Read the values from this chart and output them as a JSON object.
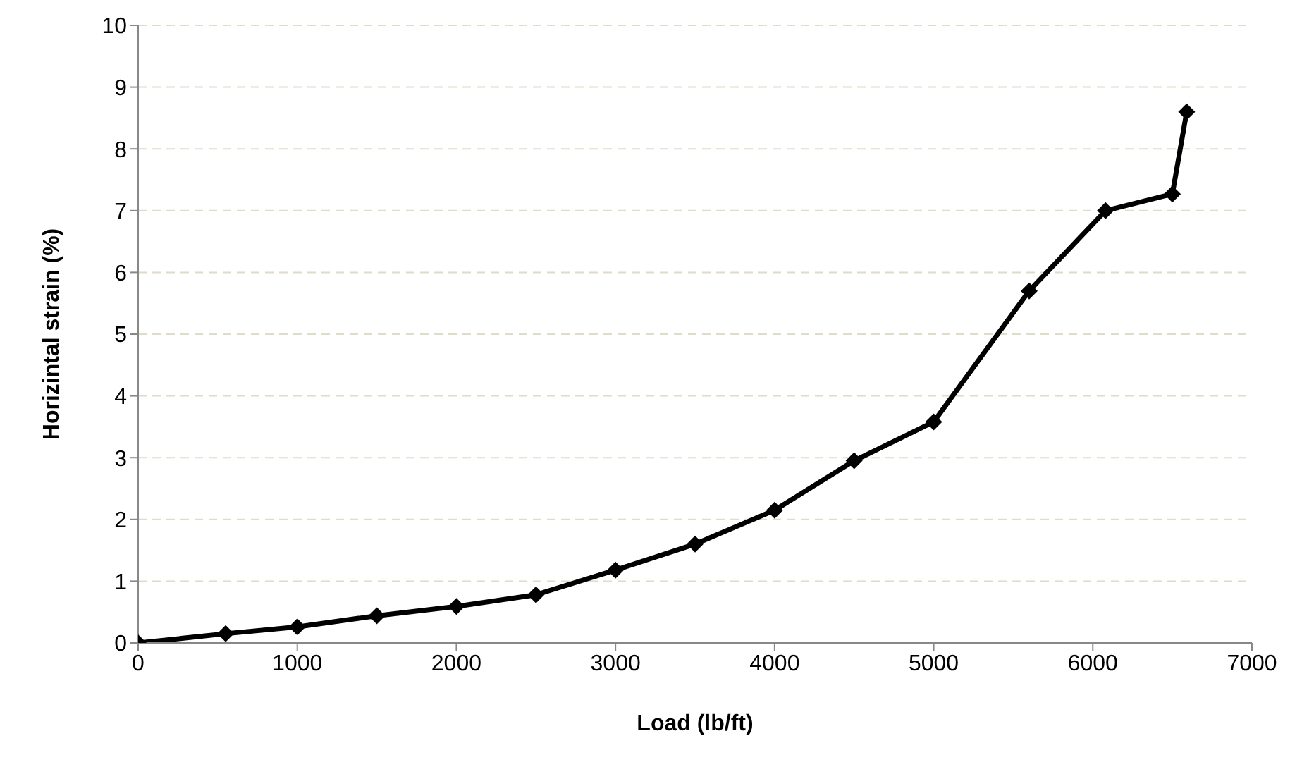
{
  "chart_data": {
    "type": "line",
    "xlabel": "Load (lb/ft)",
    "ylabel": "Horizintal strain (%)",
    "x": [
      0,
      550,
      1000,
      1500,
      2000,
      2500,
      3000,
      3500,
      4000,
      4500,
      5000,
      5600,
      6080,
      6500,
      6590
    ],
    "series": [
      {
        "color": "#000000",
        "values": [
          0,
          0.15,
          0.26,
          0.44,
          0.59,
          0.78,
          1.18,
          1.6,
          2.15,
          2.95,
          3.58,
          5.7,
          7,
          7.27,
          8.6
        ]
      }
    ],
    "xlim": [
      0,
      7000
    ],
    "xticks": [
      0,
      1000,
      2000,
      3000,
      4000,
      5000,
      6000,
      7000
    ],
    "ylim": [
      0,
      10
    ],
    "yticks": [
      0,
      1,
      2,
      3,
      4,
      5,
      6,
      7,
      8,
      9,
      10
    ],
    "grid": "y",
    "legend": false,
    "marker": "diamond",
    "line_style": "solid"
  }
}
